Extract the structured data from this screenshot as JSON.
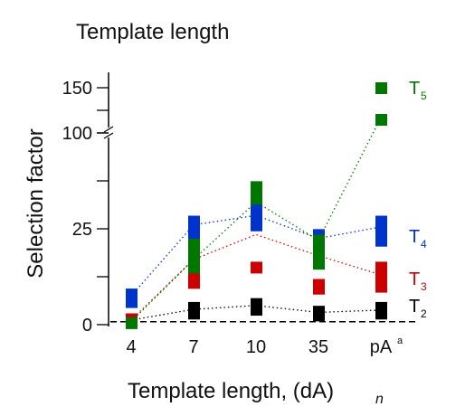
{
  "chart_data": {
    "type": "scatter",
    "title": "Template length",
    "xlabel": "Template length, (dA)",
    "xlabel_subscript": "n",
    "ylabel": "Selection factor",
    "categories": [
      "4",
      "7",
      "10",
      "35",
      "pA"
    ],
    "category_superscripts": [
      "",
      "",
      "",
      "",
      "a"
    ],
    "y_axis": {
      "broken": true,
      "lower_segment_range": [
        0,
        50
      ],
      "upper_segment_range": [
        100,
        150
      ],
      "tick_labels": [
        "0",
        "25",
        "100",
        "150"
      ],
      "tick_values": [
        0,
        25,
        100,
        150
      ],
      "minor_ticks": [
        12.5,
        37.5,
        50,
        125
      ]
    },
    "reference_line": {
      "value": 1,
      "style": "dashed",
      "color": "#000000"
    },
    "grid": false,
    "legend": "inline labels at right end of each series",
    "series": [
      {
        "name": "T",
        "subscript": "2",
        "color": "#000000",
        "values": [
          [
            1.5
          ],
          [
            3,
            4.5
          ],
          [
            4,
            5.5
          ],
          [
            2.5,
            3.5
          ],
          [
            3,
            4.5
          ]
        ],
        "trend": [
          1.2,
          4,
          5,
          3.2,
          3.8
        ]
      },
      {
        "name": "T",
        "subscript": "3",
        "color": "#cc0000",
        "values": [
          [
            1.5
          ],
          [
            11,
            13,
            21.5
          ],
          [
            15
          ],
          [
            9.5,
            10.5
          ],
          [
            10,
            12,
            14,
            15
          ]
        ],
        "trend": [
          1.2,
          17,
          23.5,
          18,
          13
        ]
      },
      {
        "name": "T",
        "subscript": "4",
        "color": "#0033cc",
        "values": [
          [
            6,
            8
          ],
          [
            23,
            25.5,
            27
          ],
          [
            26,
            28,
            30
          ],
          [
            21,
            23.5
          ],
          [
            22,
            24,
            26,
            27
          ]
        ],
        "trend": [
          7.5,
          26,
          28.5,
          22.5,
          25.5
        ]
      },
      {
        "name": "T",
        "subscript": "5",
        "color": "#007700",
        "values": [
          [
            0.5
          ],
          [
            15,
            18,
            21
          ],
          [
            33,
            36
          ],
          [
            16,
            19,
            22
          ],
          [
            115,
            150
          ]
        ],
        "trend": [
          0.8,
          17,
          32,
          22,
          117
        ]
      }
    ]
  }
}
